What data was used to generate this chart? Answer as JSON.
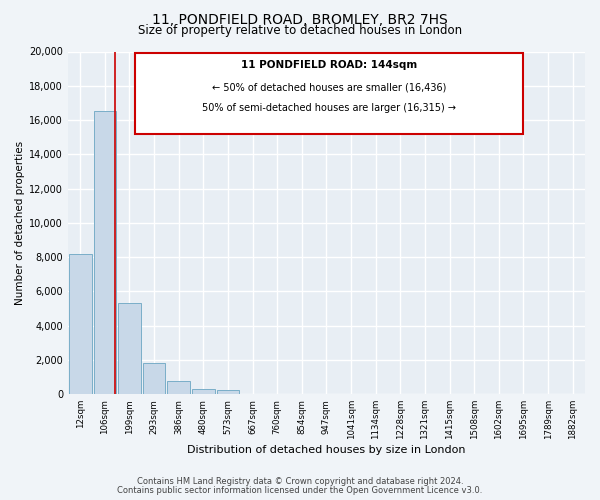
{
  "title_line1": "11, PONDFIELD ROAD, BROMLEY, BR2 7HS",
  "title_line2": "Size of property relative to detached houses in London",
  "xlabel": "Distribution of detached houses by size in London",
  "ylabel": "Number of detached properties",
  "bar_labels": [
    "12sqm",
    "106sqm",
    "199sqm",
    "293sqm",
    "386sqm",
    "480sqm",
    "573sqm",
    "667sqm",
    "760sqm",
    "854sqm",
    "947sqm",
    "1041sqm",
    "1134sqm",
    "1228sqm",
    "1321sqm",
    "1415sqm",
    "1508sqm",
    "1602sqm",
    "1695sqm",
    "1789sqm",
    "1882sqm"
  ],
  "bar_values": [
    8200,
    16500,
    5300,
    1800,
    800,
    300,
    250,
    0,
    0,
    0,
    0,
    0,
    0,
    0,
    0,
    0,
    0,
    0,
    0,
    0,
    0
  ],
  "bar_color": "#c8d8e8",
  "bar_edge_color": "#7aaec8",
  "ylim": [
    0,
    20000
  ],
  "yticks": [
    0,
    2000,
    4000,
    6000,
    8000,
    10000,
    12000,
    14000,
    16000,
    18000,
    20000
  ],
  "annotation_title": "11 PONDFIELD ROAD: 144sqm",
  "annotation_line1": "← 50% of detached houses are smaller (16,436)",
  "annotation_line2": "50% of semi-detached houses are larger (16,315) →",
  "annotation_box_color": "#ffffff",
  "annotation_box_edge": "#cc0000",
  "red_line_color": "#cc0000",
  "footer_line1": "Contains HM Land Registry data © Crown copyright and database right 2024.",
  "footer_line2": "Contains public sector information licensed under the Open Government Licence v3.0.",
  "bg_color": "#f0f4f8",
  "plot_bg_color": "#e8eef4",
  "grid_color": "#ffffff",
  "title_fontsize": 10,
  "subtitle_fontsize": 8.5
}
